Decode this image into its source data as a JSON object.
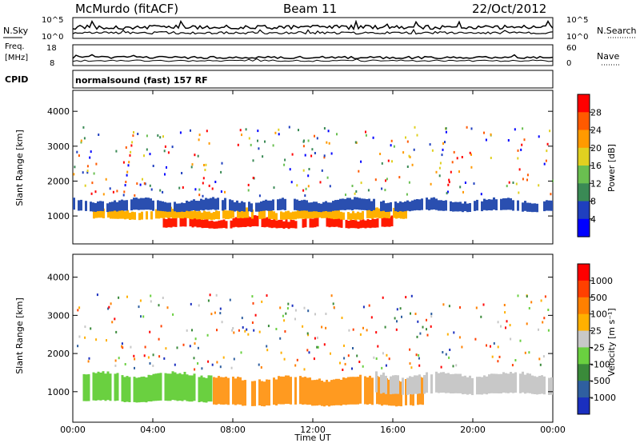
{
  "header": {
    "station": "McMurdo (fitACF)",
    "beam": "Beam 11",
    "date": "22/Oct/2012"
  },
  "top_panels": {
    "nsky_label": "N.Sky",
    "nsearch_label": "N.Search",
    "nsky_ticks": [
      "10^5",
      "10^0"
    ],
    "nsearch_ticks": [
      "10^5",
      "10^0"
    ],
    "freq_label": "Freq.",
    "freq_unit": "[MHz]",
    "freq_ticks": [
      "18",
      "8"
    ],
    "nave_label": "Nave",
    "nave_ticks": [
      "60",
      "0"
    ],
    "cpid_label": "CPID",
    "cpid_text": "normalsound (fast) 157 RF"
  },
  "chart_data": [
    {
      "type": "heatmap",
      "name": "power",
      "ylabel": "Slant Range [km]",
      "y_ticks": [
        "4000",
        "3000",
        "2000",
        "1000"
      ],
      "ylim": [
        200,
        4600
      ],
      "xlim": [
        "00:00",
        "24:00"
      ],
      "colorbar_label": "Power [dB]",
      "colorbar_ticks": [
        "28",
        "24",
        "20",
        "16",
        "12",
        "8",
        "4"
      ],
      "colorbar_colors": [
        "#0000ff",
        "#1f3fbf",
        "#3a8a55",
        "#6abf50",
        "#e0d020",
        "#ff9a00",
        "#ff5a00",
        "#ff0000"
      ],
      "bands": [
        {
          "center_km": 800,
          "width_km": 260,
          "level": "high",
          "color": "#ff1a00",
          "t_start": "04:30",
          "t_end": "16:00"
        },
        {
          "center_km": 1050,
          "width_km": 260,
          "level": "mid",
          "color": "#ffb000",
          "t_start": "01:00",
          "t_end": "17:00"
        },
        {
          "center_km": 1300,
          "width_km": 300,
          "level": "low",
          "color": "#2a4fb0",
          "t_start": "00:00",
          "t_end": "24:00"
        }
      ]
    },
    {
      "type": "heatmap",
      "name": "velocity",
      "ylabel": "Slant Range [km]",
      "y_ticks": [
        "4000",
        "3000",
        "2000",
        "1000"
      ],
      "ylim": [
        200,
        4600
      ],
      "xlim": [
        "00:00",
        "24:00"
      ],
      "colorbar_label": "Velocity [m s⁻¹]",
      "colorbar_ticks": [
        "1000",
        "500",
        "100",
        "25",
        "-25",
        "-100",
        "-500",
        "-1000"
      ],
      "colorbar_colors": [
        "#1a2fbf",
        "#2f5fa0",
        "#3a8a3a",
        "#6ad040",
        "#c8c8c8",
        "#ffb000",
        "#ff8000",
        "#ff4000",
        "#ff0000"
      ],
      "bands": [
        {
          "center_km": 1100,
          "width_km": 700,
          "color": "#6ad040",
          "t_start": "00:30",
          "t_end": "07:00"
        },
        {
          "center_km": 1000,
          "width_km": 700,
          "color": "#ff9a20",
          "t_start": "07:00",
          "t_end": "17:30"
        },
        {
          "center_km": 1200,
          "width_km": 500,
          "color": "#c8c8c8",
          "t_start": "15:00",
          "t_end": "24:00"
        }
      ]
    }
  ],
  "x_axis": {
    "ticks": [
      "00:00",
      "04:00",
      "08:00",
      "12:00",
      "16:00",
      "20:00",
      "00:00"
    ],
    "label": "Time UT"
  }
}
